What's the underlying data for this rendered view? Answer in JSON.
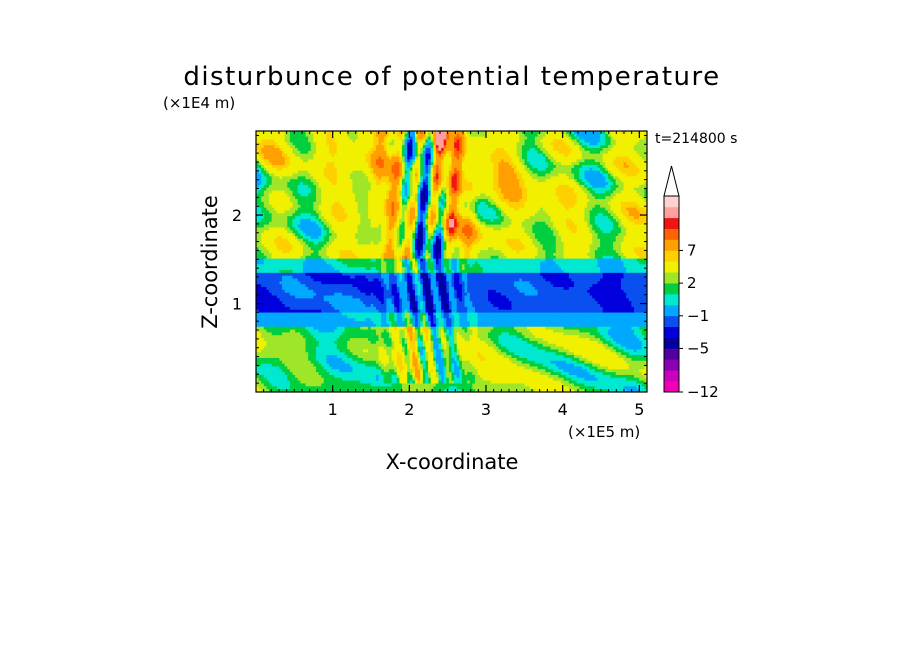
{
  "chart_data": {
    "type": "heatmap",
    "title": "disturbunce of potential temperature",
    "xlabel": "X-coordinate",
    "ylabel": "Z-coordinate",
    "x_unit": "(×1E5 m)",
    "y_unit": "(×1E4 m)",
    "time_label": "t=214800 s",
    "xlim": [
      0,
      5.1
    ],
    "ylim": [
      0,
      2.95
    ],
    "xticks": [
      1,
      2,
      3,
      4,
      5
    ],
    "yticks": [
      1,
      2
    ],
    "colorbar": {
      "levels": [
        -12,
        -11,
        -9,
        -7,
        -5,
        -4,
        -3,
        -1,
        0,
        1,
        2,
        4,
        5,
        7,
        8,
        9
      ],
      "tick_labels": [
        {
          "value": -12,
          "label": "−12"
        },
        {
          "value": -5,
          "label": "−5"
        },
        {
          "value": -1,
          "label": "−1"
        },
        {
          "value": 2,
          "label": "2"
        },
        {
          "value": 7,
          "label": "7"
        }
      ],
      "colors": [
        "#f000b0",
        "#c800c0",
        "#8c00b4",
        "#5000a0",
        "#0000a0",
        "#0000dc",
        "#0a50f0",
        "#00a8ff",
        "#00e8d0",
        "#00d040",
        "#a0e628",
        "#f0f000",
        "#ffd000",
        "#ffa000",
        "#ff6400",
        "#f01414",
        "#ffa0a0",
        "#ffd2d2"
      ],
      "extend": "max"
    }
  }
}
